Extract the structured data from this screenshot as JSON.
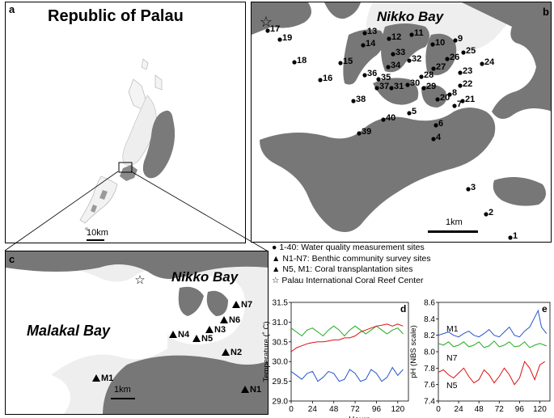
{
  "panel_a": {
    "label": "a",
    "title": "Republic of Palau",
    "scale": "10km"
  },
  "panel_b": {
    "label": "b",
    "bay": "Nikko Bay",
    "scale": "1km",
    "sites": [
      {
        "id": "1"
      },
      {
        "id": "2"
      },
      {
        "id": "3"
      },
      {
        "id": "4"
      },
      {
        "id": "5"
      },
      {
        "id": "6"
      },
      {
        "id": "7"
      },
      {
        "id": "8"
      },
      {
        "id": "9"
      },
      {
        "id": "10"
      },
      {
        "id": "11"
      },
      {
        "id": "12"
      },
      {
        "id": "13"
      },
      {
        "id": "14"
      },
      {
        "id": "15"
      },
      {
        "id": "16"
      },
      {
        "id": "17"
      },
      {
        "id": "18"
      },
      {
        "id": "19"
      },
      {
        "id": "20"
      },
      {
        "id": "21"
      },
      {
        "id": "22"
      },
      {
        "id": "23"
      },
      {
        "id": "24"
      },
      {
        "id": "25"
      },
      {
        "id": "26"
      },
      {
        "id": "27"
      },
      {
        "id": "28"
      },
      {
        "id": "29"
      },
      {
        "id": "30"
      },
      {
        "id": "31"
      },
      {
        "id": "32"
      },
      {
        "id": "33"
      },
      {
        "id": "34"
      },
      {
        "id": "35"
      },
      {
        "id": "36"
      },
      {
        "id": "37"
      },
      {
        "id": "38"
      },
      {
        "id": "39"
      },
      {
        "id": "40"
      }
    ]
  },
  "panel_c": {
    "label": "c",
    "bay_nikko": "Nikko Bay",
    "bay_malakal": "Malakal Bay",
    "scale": "1km",
    "sites": [
      {
        "id": "M1"
      },
      {
        "id": "N1"
      },
      {
        "id": "N2"
      },
      {
        "id": "N3"
      },
      {
        "id": "N4"
      },
      {
        "id": "N5"
      },
      {
        "id": "N6"
      },
      {
        "id": "N7"
      }
    ]
  },
  "legend": {
    "items": [
      {
        "symbol": "●",
        "text": "1-40: Water quality measurement sites"
      },
      {
        "symbol": "▲",
        "text": "N1-N7: Benthic community survey sites"
      },
      {
        "symbol": "▲",
        "text": "N5, M1: Coral transplantation sites"
      },
      {
        "symbol": "☆",
        "text": "Palau International Coral Reef Center"
      }
    ]
  },
  "chart_data": [
    {
      "panel": "d",
      "type": "line",
      "xlabel": "Hours",
      "ylabel": "Temperature (˚ C)",
      "xlim": [
        0,
        132
      ],
      "ylim": [
        29.0,
        31.5
      ],
      "xticks": [
        "0",
        "24",
        "48",
        "72",
        "96",
        "120"
      ],
      "yticks": [
        "29.0",
        "29.5",
        "30.0",
        "30.5",
        "31.0",
        "31.5"
      ],
      "colors": [
        "#2255cc",
        "#22aa22",
        "#dd1111"
      ],
      "series": [
        {
          "color": "#2255cc",
          "x": [
            0,
            6,
            12,
            18,
            24,
            30,
            36,
            42,
            48,
            54,
            60,
            66,
            72,
            78,
            84,
            90,
            96,
            102,
            108,
            114,
            120,
            126
          ],
          "y": [
            29.75,
            29.65,
            29.55,
            29.7,
            29.75,
            29.5,
            29.6,
            29.75,
            29.7,
            29.5,
            29.55,
            29.8,
            29.7,
            29.5,
            29.55,
            29.8,
            29.7,
            29.5,
            29.6,
            29.85,
            29.65,
            29.8
          ]
        },
        {
          "color": "#22aa22",
          "x": [
            0,
            6,
            12,
            18,
            24,
            30,
            36,
            42,
            48,
            54,
            60,
            66,
            72,
            78,
            84,
            90,
            96,
            102,
            108,
            114,
            120,
            126
          ],
          "y": [
            30.85,
            30.75,
            30.65,
            30.8,
            30.85,
            30.75,
            30.65,
            30.8,
            30.9,
            30.8,
            30.65,
            30.8,
            30.9,
            30.8,
            30.7,
            30.8,
            30.9,
            30.8,
            30.7,
            30.8,
            30.85,
            30.7
          ]
        },
        {
          "color": "#dd1111",
          "x": [
            0,
            6,
            12,
            18,
            24,
            30,
            36,
            42,
            48,
            54,
            60,
            66,
            72,
            78,
            84,
            90,
            96,
            102,
            108,
            114,
            120,
            126
          ],
          "y": [
            30.25,
            30.35,
            30.4,
            30.45,
            30.48,
            30.5,
            30.5,
            30.52,
            30.55,
            30.55,
            30.6,
            30.6,
            30.65,
            30.75,
            30.8,
            30.85,
            30.9,
            30.92,
            30.95,
            30.9,
            30.95,
            30.9
          ]
        }
      ]
    },
    {
      "panel": "e",
      "type": "line",
      "xlabel": "",
      "ylabel": "pH (NBS scale)",
      "xlim": [
        0,
        132
      ],
      "ylim": [
        7.4,
        8.6
      ],
      "xticks": [
        "0",
        "24",
        "48",
        "72",
        "96",
        "120"
      ],
      "yticks": [
        "7.4",
        "7.6",
        "7.8",
        "8.0",
        "8.2",
        "8.4",
        "8.6"
      ],
      "colors": [
        "#2255cc",
        "#22aa22",
        "#dd1111"
      ],
      "series": [
        {
          "name": "M1",
          "color": "#2255cc",
          "x": [
            0,
            6,
            12,
            18,
            24,
            30,
            36,
            42,
            48,
            54,
            60,
            66,
            72,
            78,
            84,
            90,
            96,
            102,
            108,
            114,
            118,
            122,
            128
          ],
          "y": [
            8.2,
            8.22,
            8.24,
            8.2,
            8.18,
            8.22,
            8.25,
            8.2,
            8.18,
            8.22,
            8.27,
            8.2,
            8.18,
            8.24,
            8.3,
            8.2,
            8.18,
            8.25,
            8.3,
            8.42,
            8.5,
            8.3,
            8.22
          ]
        },
        {
          "name": "N7",
          "color": "#22aa22",
          "x": [
            0,
            6,
            12,
            18,
            24,
            30,
            36,
            42,
            48,
            54,
            60,
            66,
            72,
            78,
            84,
            90,
            96,
            102,
            108,
            114,
            120,
            128
          ],
          "y": [
            8.1,
            8.08,
            8.12,
            8.06,
            8.08,
            8.12,
            8.06,
            8.08,
            8.12,
            8.05,
            8.07,
            8.13,
            8.06,
            8.08,
            8.12,
            8.06,
            8.07,
            8.12,
            8.05,
            8.08,
            8.1,
            8.07
          ]
        },
        {
          "name": "N5",
          "color": "#dd1111",
          "x": [
            0,
            6,
            12,
            18,
            24,
            30,
            36,
            42,
            48,
            54,
            60,
            66,
            72,
            78,
            84,
            90,
            96,
            102,
            108,
            114,
            120,
            126
          ],
          "y": [
            7.75,
            7.78,
            7.72,
            7.68,
            7.74,
            7.8,
            7.7,
            7.62,
            7.66,
            7.78,
            7.72,
            7.62,
            7.7,
            7.8,
            7.72,
            7.6,
            7.68,
            7.88,
            7.8,
            7.66,
            7.84,
            7.88
          ]
        }
      ]
    }
  ]
}
